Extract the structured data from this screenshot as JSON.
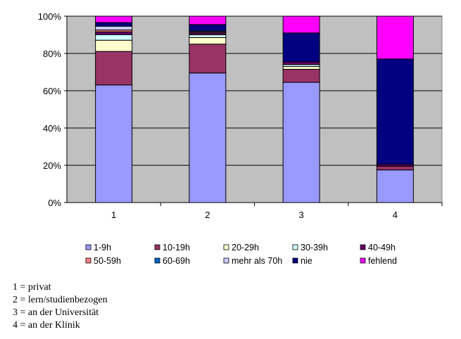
{
  "chart_data": {
    "type": "bar",
    "stacked": true,
    "categories": [
      "1",
      "2",
      "3",
      "4"
    ],
    "ylim": [
      0,
      100
    ],
    "yticks": [
      "0%",
      "20%",
      "40%",
      "60%",
      "80%",
      "100%"
    ],
    "legend_position": "bottom",
    "series": [
      {
        "name": "1-9h",
        "color": "#9999ff",
        "values": [
          63.1,
          69.5,
          64.5,
          17.5
        ]
      },
      {
        "name": "10-19h",
        "color": "#993366",
        "values": [
          18,
          15.5,
          7,
          2
        ]
      },
      {
        "name": "20-29h",
        "color": "#ffffcc",
        "values": [
          6,
          3.5,
          1.5,
          0
        ]
      },
      {
        "name": "30-39h",
        "color": "#ccffff",
        "values": [
          3,
          1.5,
          1,
          0
        ]
      },
      {
        "name": "40-49h",
        "color": "#660066",
        "values": [
          1.5,
          1,
          1.5,
          1
        ]
      },
      {
        "name": "50-59h",
        "color": "#ff8080",
        "values": [
          1,
          0.5,
          0,
          0
        ]
      },
      {
        "name": "60-69h",
        "color": "#0066cc",
        "values": [
          0,
          0,
          0,
          0
        ]
      },
      {
        "name": "mehr als 70h",
        "color": "#ccccff",
        "values": [
          2,
          0.5,
          0,
          0
        ]
      },
      {
        "name": "nie",
        "color": "#000080",
        "values": [
          2,
          3.5,
          15.5,
          56.5
        ]
      },
      {
        "name": "fehlend",
        "color": "#ff00ff",
        "values": [
          3.4,
          4.5,
          9,
          23
        ]
      }
    ]
  },
  "notes": [
    "1 = privat",
    "2 = lern/studienbezogen",
    "3 = an der Universität",
    "4 = an der Klinik"
  ]
}
